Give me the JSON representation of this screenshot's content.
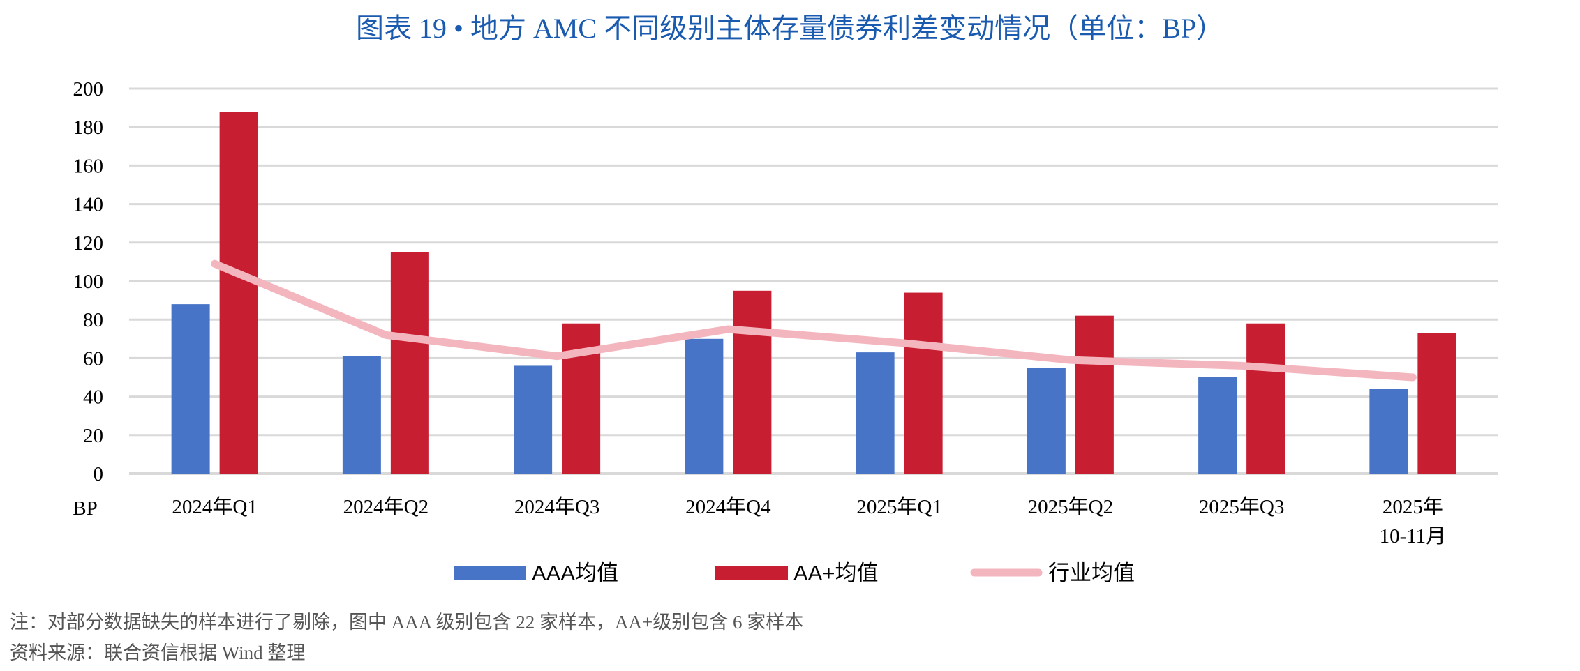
{
  "chart_data": {
    "type": "bar",
    "title": "图表 19 • 地方 AMC 不同级别主体存量债券利差变动情况（单位：BP）",
    "ylabel": "BP",
    "ylim": [
      0,
      200
    ],
    "yticks": [
      0,
      20,
      40,
      60,
      80,
      100,
      120,
      140,
      160,
      180,
      200
    ],
    "grid": true,
    "legend": "bottom",
    "categories": [
      "2024年Q1",
      "2024年Q2",
      "2024年Q3",
      "2024年Q4",
      "2025年Q1",
      "2025年Q2",
      "2025年Q3",
      "2025年\n10-11月"
    ],
    "series": [
      {
        "name": "AAA均值",
        "type": "bar",
        "color": "#4874c8",
        "values": [
          88,
          61,
          56,
          70,
          63,
          55,
          50,
          44
        ]
      },
      {
        "name": "AA+均值",
        "type": "bar",
        "color": "#c81e32",
        "values": [
          188,
          115,
          78,
          95,
          94,
          82,
          78,
          73
        ]
      },
      {
        "name": "行业均值",
        "type": "line",
        "color": "#f4b6be",
        "values": [
          109,
          72,
          61,
          75,
          68,
          59,
          56,
          50
        ]
      }
    ]
  },
  "notes": {
    "note": "注：对部分数据缺失的样本进行了剔除，图中 AAA 级别包含 22 家样本，AA+级别包含 6 家样本",
    "source": "资料来源：联合资信根据 Wind 整理"
  }
}
